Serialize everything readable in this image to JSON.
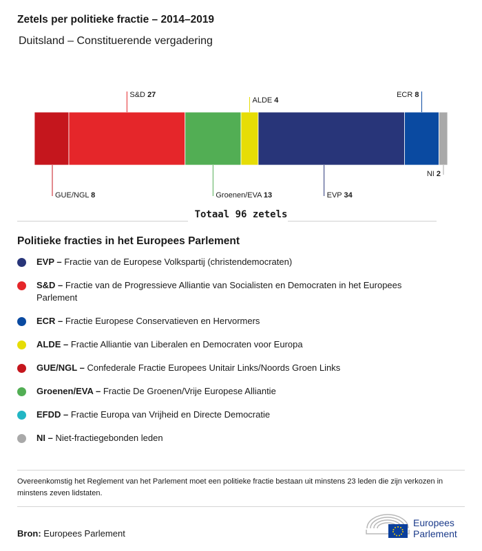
{
  "header": {
    "title": "Zetels per politieke fractie – 2014–2019",
    "subtitle": "Duitsland – Constituerende vergadering"
  },
  "chart_data": {
    "type": "bar",
    "orientation": "horizontal-stacked",
    "total": 96,
    "total_label": "Totaal 96 zetels",
    "segments": [
      {
        "abbr": "GUE/NGL",
        "value": 8,
        "color": "#c5161d",
        "label_side": "bottom"
      },
      {
        "abbr": "S&D",
        "value": 27,
        "color": "#e5262a",
        "label_side": "top"
      },
      {
        "abbr": "Groenen/EVA",
        "value": 13,
        "color": "#52ae54",
        "label_side": "bottom"
      },
      {
        "abbr": "ALDE",
        "value": 4,
        "color": "#e6dd06",
        "label_side": "top"
      },
      {
        "abbr": "EVP",
        "value": 34,
        "color": "#283579",
        "label_side": "bottom"
      },
      {
        "abbr": "ECR",
        "value": 8,
        "color": "#0a4aa1",
        "label_side": "top"
      },
      {
        "abbr": "NI",
        "value": 2,
        "color": "#a9a9a9",
        "label_side": "bottom"
      }
    ]
  },
  "legend": {
    "title": "Politieke fracties in het Europees Parlement",
    "items": [
      {
        "abbr": "EVP –",
        "desc": "Fractie van de Europese Volkspartij (christendemocraten)",
        "color": "#283579"
      },
      {
        "abbr": "S&D –",
        "desc": "Fractie van de Progressieve Alliantie van Socialisten en Democraten in het Europees Parlement",
        "color": "#e5262a"
      },
      {
        "abbr": "ECR –",
        "desc": "Fractie Europese Conservatieven en Hervormers",
        "color": "#0a4aa1"
      },
      {
        "abbr": "ALDE –",
        "desc": "Fractie Alliantie van Liberalen en Democraten voor Europa",
        "color": "#e6dd06"
      },
      {
        "abbr": "GUE/NGL –",
        "desc": "Confederale Fractie Europees Unitair Links/Noords Groen Links",
        "color": "#c5161d"
      },
      {
        "abbr": "Groenen/EVA –",
        "desc": "Fractie De Groenen/Vrije Europese Alliantie",
        "color": "#52ae54"
      },
      {
        "abbr": "EFDD –",
        "desc": "Fractie Europa van Vrijheid en Directe Democratie",
        "color": "#22b6c4"
      },
      {
        "abbr": "NI –",
        "desc": "Niet-fractiegebonden leden",
        "color": "#a9a9a9"
      }
    ]
  },
  "footer": {
    "note": "Overeenkomstig het Reglement van het Parlement moet een politieke fractie bestaan uit minstens 23 leden die zijn verkozen in minstens zeven lidstaten.",
    "source_label": "Bron:",
    "source_value": "Europees Parlement",
    "logo_line1": "Europees",
    "logo_line2": "Parlement"
  }
}
